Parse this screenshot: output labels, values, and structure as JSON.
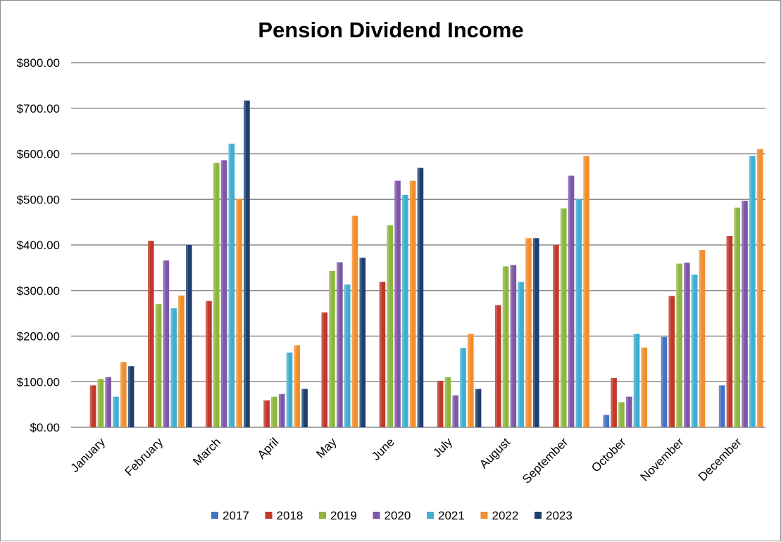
{
  "chart_data": {
    "type": "bar",
    "title": "Pension Dividend Income",
    "xlabel": "",
    "ylabel": "",
    "ylim": [
      0,
      800
    ],
    "yticks": [
      0,
      100,
      200,
      300,
      400,
      500,
      600,
      700,
      800
    ],
    "ytick_labels": [
      "$0.00",
      "$100.00",
      "$200.00",
      "$300.00",
      "$400.00",
      "$500.00",
      "$600.00",
      "$700.00",
      "$800.00"
    ],
    "grid": true,
    "legend_position": "bottom",
    "categories": [
      "January",
      "February",
      "March",
      "April",
      "May",
      "June",
      "July",
      "August",
      "September",
      "October",
      "November",
      "December"
    ],
    "series": [
      {
        "name": "2017",
        "color": "#4472C4",
        "values": [
          null,
          null,
          null,
          null,
          null,
          null,
          null,
          null,
          null,
          27,
          198,
          92
        ]
      },
      {
        "name": "2018",
        "color": "#C0392B",
        "values": [
          92,
          409,
          277,
          59,
          252,
          319,
          102,
          268,
          400,
          108,
          288,
          420
        ]
      },
      {
        "name": "2019",
        "color": "#8DB63C",
        "values": [
          106,
          270,
          580,
          67,
          343,
          443,
          110,
          353,
          480,
          55,
          359,
          482
        ]
      },
      {
        "name": "2020",
        "color": "#7E57A8",
        "values": [
          110,
          366,
          586,
          73,
          362,
          541,
          70,
          356,
          552,
          67,
          361,
          497
        ]
      },
      {
        "name": "2021",
        "color": "#3FAED0",
        "values": [
          67,
          261,
          622,
          164,
          313,
          510,
          174,
          319,
          500,
          205,
          335,
          595
        ]
      },
      {
        "name": "2022",
        "color": "#F28E2B",
        "values": [
          143,
          289,
          501,
          180,
          464,
          541,
          205,
          415,
          595,
          175,
          389,
          610
        ]
      },
      {
        "name": "2023",
        "color": "#1F3F6E",
        "values": [
          134,
          400,
          717,
          84,
          372,
          569,
          84,
          415,
          null,
          null,
          null,
          null
        ]
      }
    ]
  }
}
